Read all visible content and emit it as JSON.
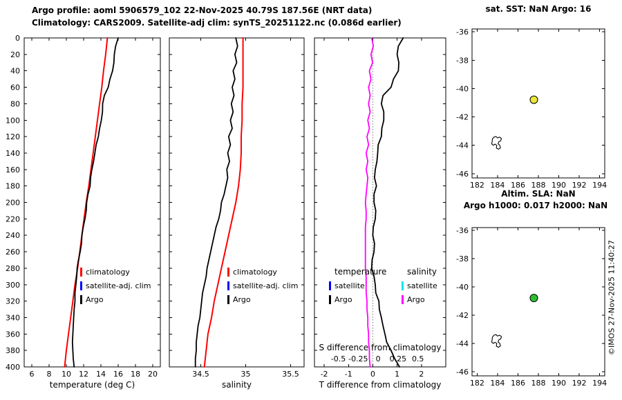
{
  "header": {
    "title": "Argo profile: aoml 5906579_102 22-Nov-2025 40.79S 187.56E (NRT data)",
    "subtitle": "Climatology: CARS2009. Satellite-adj clim: synTS_20251122.nc (0.086d earlier)"
  },
  "copyright": "©IMOS 27-Nov-2025 11:40:27",
  "legends": {
    "profile": [
      {
        "label": "climatology",
        "color": "#ff0000"
      },
      {
        "label": "satellite-adj. clim",
        "color": "#0000ff"
      },
      {
        "label": "Argo",
        "color": "#000000"
      }
    ],
    "difference": {
      "temperature_header": "temperature",
      "salinity_header": "salinity",
      "temperature_items": [
        {
          "label": "satellite",
          "color": "#0000ff"
        },
        {
          "label": "Argo",
          "color": "#000000"
        }
      ],
      "salinity_items": [
        {
          "label": "satellite",
          "color": "#00e5ee"
        },
        {
          "label": "Argo",
          "color": "#ff00ff"
        }
      ]
    }
  },
  "chart_data": [
    {
      "id": "temperature-profile",
      "type": "line",
      "xlabel": "temperature (deg C)",
      "xlim": [
        5.12,
        20.88
      ],
      "xticks": [
        6,
        8,
        10,
        12,
        14,
        16,
        18,
        20
      ],
      "ylim": [
        0,
        400
      ],
      "yticks": [
        0,
        20,
        40,
        60,
        80,
        100,
        120,
        140,
        160,
        180,
        200,
        220,
        240,
        260,
        280,
        300,
        320,
        340,
        360,
        380,
        400
      ],
      "series": [
        {
          "name": "climatology",
          "id": "climatology-temperature-line",
          "color": "#ff0000",
          "linewidth": 2,
          "depths": [
            0,
            20,
            40,
            60,
            80,
            100,
            120,
            140,
            160,
            180,
            200,
            220,
            240,
            260,
            280,
            300,
            320,
            340,
            360,
            380,
            400
          ],
          "values": [
            14.75,
            14.55,
            14.3,
            14.1,
            13.85,
            13.6,
            13.35,
            13.1,
            12.85,
            12.6,
            12.3,
            12.05,
            11.8,
            11.55,
            11.3,
            11.0,
            10.75,
            10.5,
            10.25,
            10.0,
            9.8
          ]
        },
        {
          "name": "Argo",
          "id": "argo-temperature-line",
          "color": "#000000",
          "linewidth": 1.8,
          "depths": [
            0,
            10,
            20,
            30,
            40,
            50,
            60,
            70,
            80,
            90,
            100,
            110,
            120,
            130,
            140,
            150,
            160,
            170,
            180,
            190,
            200,
            210,
            220,
            230,
            240,
            250,
            260,
            270,
            280,
            290,
            300,
            310,
            320,
            330,
            340,
            350,
            360,
            370,
            380,
            390,
            400
          ],
          "values": [
            16.0,
            15.7,
            15.55,
            15.5,
            15.35,
            15.05,
            14.85,
            14.4,
            14.2,
            14.18,
            14.05,
            13.85,
            13.7,
            13.45,
            13.3,
            13.15,
            12.95,
            12.8,
            12.75,
            12.5,
            12.35,
            12.3,
            12.15,
            11.95,
            11.8,
            11.75,
            11.6,
            11.4,
            11.25,
            11.2,
            11.1,
            11.0,
            11.0,
            10.9,
            10.85,
            10.8,
            10.75,
            10.7,
            10.75,
            10.8,
            10.9
          ]
        }
      ]
    },
    {
      "id": "salinity-profile",
      "type": "line",
      "xlabel": "salinity",
      "xlim": [
        34.15,
        35.65
      ],
      "xticks": [
        34.5,
        35,
        35.5
      ],
      "ylim": [
        0,
        400
      ],
      "yticks": [
        0,
        20,
        40,
        60,
        80,
        100,
        120,
        140,
        160,
        180,
        200,
        220,
        240,
        260,
        280,
        300,
        320,
        340,
        360,
        380,
        400
      ],
      "series": [
        {
          "name": "climatology",
          "id": "climatology-salinity-line",
          "color": "#ff0000",
          "linewidth": 2,
          "depths": [
            0,
            20,
            40,
            60,
            80,
            100,
            120,
            140,
            160,
            180,
            200,
            220,
            240,
            260,
            280,
            300,
            320,
            340,
            360,
            380,
            400
          ],
          "values": [
            34.97,
            34.97,
            34.97,
            34.97,
            34.96,
            34.96,
            34.95,
            34.95,
            34.94,
            34.92,
            34.89,
            34.85,
            34.81,
            34.77,
            34.73,
            34.69,
            34.65,
            34.62,
            34.58,
            34.56,
            34.54
          ]
        },
        {
          "name": "Argo",
          "id": "argo-salinity-line",
          "color": "#000000",
          "linewidth": 1.8,
          "depths": [
            0,
            10,
            20,
            30,
            40,
            50,
            60,
            70,
            80,
            90,
            100,
            110,
            120,
            130,
            140,
            150,
            160,
            170,
            180,
            190,
            200,
            210,
            220,
            230,
            240,
            250,
            260,
            270,
            280,
            290,
            300,
            310,
            320,
            330,
            340,
            350,
            360,
            370,
            380,
            390,
            400
          ],
          "values": [
            34.89,
            34.91,
            34.88,
            34.9,
            34.86,
            34.88,
            34.85,
            34.87,
            34.84,
            34.86,
            34.83,
            34.85,
            34.81,
            34.83,
            34.8,
            34.82,
            34.79,
            34.8,
            34.78,
            34.76,
            34.73,
            34.72,
            34.7,
            34.67,
            34.65,
            34.63,
            34.61,
            34.59,
            34.57,
            34.56,
            34.54,
            34.52,
            34.51,
            34.5,
            34.49,
            34.47,
            34.46,
            34.45,
            34.45,
            34.44,
            34.44
          ]
        }
      ]
    },
    {
      "id": "difference-profile",
      "type": "line",
      "xlabel": "T difference from climatology",
      "xlabel_secondary": "S difference from climatology",
      "xlim_T": [
        -2.4,
        3.0
      ],
      "xticks_T": [
        -2,
        -1,
        0,
        1,
        2
      ],
      "xlim_S": [
        -0.8,
        0.85
      ],
      "xticks_S": [
        -0.5,
        -0.25,
        0,
        0.25,
        0.5
      ],
      "zero_line": 0,
      "ylim": [
        0,
        400
      ],
      "yticks": [
        0,
        20,
        40,
        60,
        80,
        100,
        120,
        140,
        160,
        180,
        200,
        220,
        240,
        260,
        280,
        300,
        320,
        340,
        360,
        380,
        400
      ],
      "series": [
        {
          "name": "Argo T difference",
          "id": "t-difference-line",
          "axis": "T",
          "color": "#000000",
          "linewidth": 1.8,
          "depths": [
            0,
            10,
            20,
            30,
            40,
            50,
            60,
            70,
            80,
            90,
            100,
            110,
            120,
            130,
            140,
            150,
            160,
            170,
            180,
            190,
            200,
            210,
            220,
            230,
            240,
            250,
            260,
            270,
            280,
            290,
            300,
            310,
            320,
            330,
            340,
            350,
            360,
            370,
            380,
            390,
            400
          ],
          "values": [
            1.25,
            1.05,
            1.0,
            1.07,
            1.05,
            0.85,
            0.75,
            0.42,
            0.35,
            0.45,
            0.45,
            0.37,
            0.35,
            0.22,
            0.2,
            0.17,
            0.1,
            0.07,
            0.15,
            0.05,
            0.05,
            0.12,
            0.1,
            0.02,
            0.0,
            0.07,
            0.05,
            -0.03,
            -0.05,
            0.05,
            0.1,
            0.12,
            0.25,
            0.27,
            0.35,
            0.42,
            0.5,
            0.57,
            0.75,
            0.9,
            1.1
          ]
        },
        {
          "name": "Argo S difference",
          "id": "s-difference-line",
          "axis": "S",
          "color": "#ff00ff",
          "linewidth": 1.8,
          "depths": [
            0,
            10,
            20,
            30,
            40,
            50,
            60,
            70,
            80,
            90,
            100,
            110,
            120,
            130,
            140,
            150,
            160,
            170,
            180,
            190,
            200,
            210,
            220,
            230,
            240,
            250,
            260,
            270,
            280,
            290,
            300,
            310,
            320,
            330,
            340,
            350,
            360,
            370,
            380,
            390,
            400
          ],
          "values": [
            -0.08,
            -0.06,
            -0.09,
            -0.07,
            -0.11,
            -0.09,
            -0.12,
            -0.1,
            -0.12,
            -0.1,
            -0.13,
            -0.11,
            -0.14,
            -0.12,
            -0.15,
            -0.13,
            -0.15,
            -0.13,
            -0.14,
            -0.15,
            -0.16,
            -0.15,
            -0.15,
            -0.16,
            -0.16,
            -0.16,
            -0.16,
            -0.16,
            -0.16,
            -0.15,
            -0.15,
            -0.15,
            -0.14,
            -0.14,
            -0.13,
            -0.13,
            -0.12,
            -0.12,
            -0.11,
            -0.11,
            -0.1
          ]
        }
      ]
    },
    {
      "id": "sst-map",
      "type": "scatter",
      "title": "sat. SST: NaN Argo: 16",
      "xlim": [
        181.5,
        194.5
      ],
      "xticks": [
        182,
        184,
        186,
        188,
        190,
        192,
        194
      ],
      "ylim": [
        -46.3,
        -35.8
      ],
      "yticks": [
        -36,
        -38,
        -40,
        -42,
        -44,
        -46
      ],
      "marker": {
        "lon": 187.56,
        "lat": -40.79,
        "color": "#e8e83a"
      },
      "coastline": [
        [
          183.5,
          -43.55
        ],
        [
          183.65,
          -43.42
        ],
        [
          183.85,
          -43.38
        ],
        [
          184.0,
          -43.48
        ],
        [
          184.2,
          -43.42
        ],
        [
          184.38,
          -43.52
        ],
        [
          184.32,
          -43.68
        ],
        [
          184.12,
          -43.75
        ],
        [
          184.05,
          -43.9
        ],
        [
          184.22,
          -44.0
        ],
        [
          184.28,
          -44.18
        ],
        [
          184.1,
          -44.28
        ],
        [
          183.88,
          -44.2
        ],
        [
          183.92,
          -44.0
        ],
        [
          183.75,
          -43.92
        ],
        [
          183.58,
          -44.0
        ],
        [
          183.42,
          -43.9
        ],
        [
          183.48,
          -43.72
        ]
      ]
    },
    {
      "id": "sla-map",
      "type": "scatter",
      "title_line1": "Altim. SLA: NaN",
      "title_line2": "Argo h1000: 0.017 h2000: NaN",
      "xlim": [
        181.5,
        194.5
      ],
      "xticks": [
        182,
        184,
        186,
        188,
        190,
        192,
        194
      ],
      "ylim": [
        -46.3,
        -35.8
      ],
      "yticks": [
        -36,
        -38,
        -40,
        -42,
        -44,
        -46
      ],
      "marker": {
        "lon": 187.56,
        "lat": -40.79,
        "color": "#2ebd2e"
      },
      "coastline": [
        [
          183.5,
          -43.55
        ],
        [
          183.65,
          -43.42
        ],
        [
          183.85,
          -43.38
        ],
        [
          184.0,
          -43.48
        ],
        [
          184.2,
          -43.42
        ],
        [
          184.38,
          -43.52
        ],
        [
          184.32,
          -43.68
        ],
        [
          184.12,
          -43.75
        ],
        [
          184.05,
          -43.9
        ],
        [
          184.22,
          -44.0
        ],
        [
          184.28,
          -44.18
        ],
        [
          184.1,
          -44.28
        ],
        [
          183.88,
          -44.2
        ],
        [
          183.92,
          -44.0
        ],
        [
          183.75,
          -43.92
        ],
        [
          183.58,
          -44.0
        ],
        [
          183.42,
          -43.9
        ],
        [
          183.48,
          -43.72
        ]
      ]
    }
  ]
}
